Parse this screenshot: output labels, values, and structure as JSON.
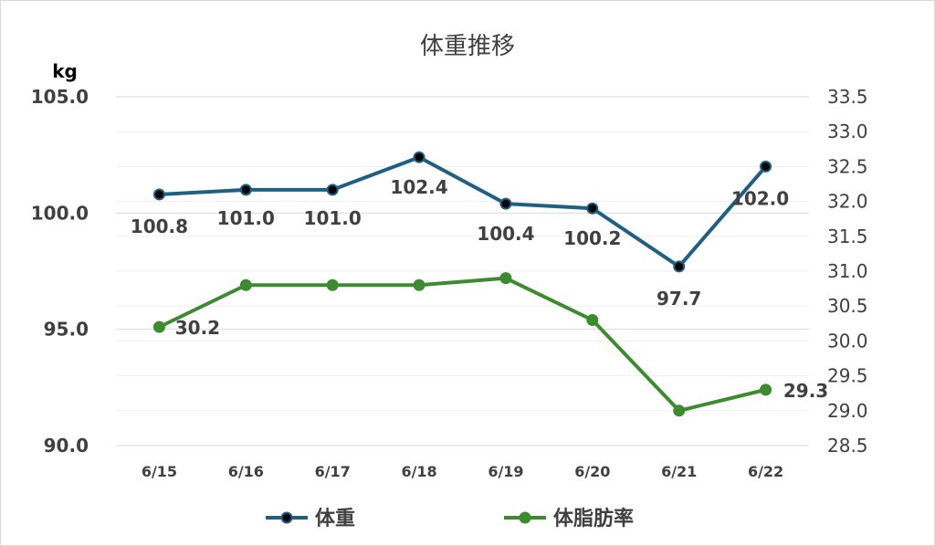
{
  "chart_data": {
    "type": "line",
    "title": "体重推移",
    "ylabel_left": "kg",
    "categories": [
      "6/15",
      "6/16",
      "6/17",
      "6/18",
      "6/19",
      "6/20",
      "6/21",
      "6/22"
    ],
    "y_left": {
      "min": 90.0,
      "max": 105.0,
      "step": 5.0,
      "ticks": [
        "90.0",
        "95.0",
        "100.0",
        "105.0"
      ]
    },
    "y_right": {
      "min": 28.5,
      "max": 33.5,
      "step": 0.5,
      "ticks": [
        "28.5",
        "29.0",
        "29.5",
        "30.0",
        "30.5",
        "31.0",
        "31.5",
        "32.0",
        "32.5",
        "33.0",
        "33.5"
      ]
    },
    "series": [
      {
        "name": "体重",
        "axis": "left",
        "color": "#1f5f82",
        "marker_color": "#000000",
        "values": [
          100.8,
          101.0,
          101.0,
          102.4,
          100.4,
          100.2,
          97.7,
          102.0
        ],
        "labels": [
          "100.8",
          "101.0",
          "101.0",
          "102.4",
          "100.4",
          "100.2",
          "97.7",
          "102.0"
        ]
      },
      {
        "name": "体脂肪率",
        "axis": "right",
        "color": "#3d8b2f",
        "marker_color": "#3d8b2f",
        "values": [
          30.2,
          30.8,
          30.8,
          30.8,
          30.9,
          30.3,
          29.0,
          29.3
        ],
        "labels": [
          "30.2",
          "",
          "",
          "",
          "",
          "",
          "",
          "29.3"
        ]
      }
    ],
    "grid": true,
    "legend": "bottom"
  }
}
